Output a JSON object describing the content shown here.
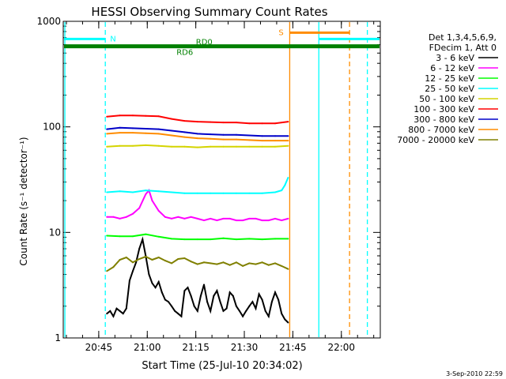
{
  "chart_data": {
    "type": "line",
    "title": "HESSI Observing Summary Count Rates",
    "xlabel": "Start Time (25-Jul-10 20:34:02)",
    "ylabel": "Count Rate (s⁻¹ detector⁻¹)",
    "x_unit": "minutes since 20:34:02",
    "xlim": [
      0,
      98
    ],
    "ylim": [
      1,
      1000
    ],
    "yscale": "log",
    "x_ticks": [
      {
        "value": 10.97,
        "label": "20:45"
      },
      {
        "value": 25.97,
        "label": "21:00"
      },
      {
        "value": 40.97,
        "label": "21:15"
      },
      {
        "value": 55.97,
        "label": "21:30"
      },
      {
        "value": 70.97,
        "label": "21:45"
      },
      {
        "value": 85.97,
        "label": "22:00"
      }
    ],
    "y_ticks": [
      {
        "value": 1,
        "label": "1"
      },
      {
        "value": 10,
        "label": "10"
      },
      {
        "value": 100,
        "label": "100"
      },
      {
        "value": 1000,
        "label": "1000"
      }
    ],
    "legend": {
      "placement": "right",
      "header": [
        "Det 1,3,4,5,6,9,",
        "FDecim 1, Att 0"
      ],
      "entries": [
        {
          "label": "3 - 6 keV",
          "color": "#000000"
        },
        {
          "label": "6 - 12 keV",
          "color": "#ff00ff"
        },
        {
          "label": "12 - 25 keV",
          "color": "#00ff00"
        },
        {
          "label": "25 - 50 keV",
          "color": "#00ffff"
        },
        {
          "label": "50 - 100 keV",
          "color": "#d4d400"
        },
        {
          "label": "100 - 300 keV",
          "color": "#ff0000"
        },
        {
          "label": "300 - 800 keV",
          "color": "#0000c8"
        },
        {
          "label": "800 - 7000 keV",
          "color": "#ff8c00"
        },
        {
          "label": "7000 - 20000 keV",
          "color": "#808000"
        }
      ]
    },
    "series": [
      {
        "name": "3 - 6 keV",
        "color": "#000000",
        "x": [
          13.5,
          14.5,
          15.5,
          16.5,
          17.5,
          18.5,
          19.5,
          20.5,
          21.5,
          22.5,
          23.5,
          24.5,
          25.5,
          26.5,
          27.5,
          28.5,
          29.5,
          30.5,
          31.5,
          32.5,
          33.5,
          34.5,
          35.5,
          36.5,
          37.5,
          38.5,
          39.5,
          40.5,
          41.5,
          42.5,
          43.5,
          44.5,
          45.5,
          46.5,
          47.5,
          48.5,
          49.5,
          50.5,
          51.5,
          52.5,
          53.5,
          54.5,
          55.5,
          56.5,
          57.5,
          58.5,
          59.5,
          60.5,
          61.5,
          62.5,
          63.5,
          64.5,
          65.5,
          66.5,
          67.5,
          68.5,
          69.5
        ],
        "y": [
          1.7,
          1.8,
          1.6,
          1.9,
          1.8,
          1.7,
          1.9,
          3.5,
          4.3,
          5.2,
          7.0,
          8.6,
          6.0,
          4.0,
          3.3,
          3.0,
          3.4,
          2.7,
          2.3,
          2.2,
          2.0,
          1.8,
          1.7,
          1.6,
          2.8,
          3.0,
          2.5,
          2.0,
          1.8,
          2.5,
          3.2,
          2.2,
          1.8,
          2.5,
          2.8,
          2.2,
          1.8,
          1.9,
          2.7,
          2.5,
          2.0,
          1.8,
          1.6,
          1.8,
          2.0,
          2.2,
          1.9,
          2.6,
          2.3,
          1.8,
          1.6,
          2.2,
          2.7,
          2.3,
          1.7,
          1.5,
          1.4
        ]
      },
      {
        "name": "6 - 12 keV",
        "color": "#ff00ff",
        "x": [
          13.5,
          15.5,
          17.5,
          19.5,
          21.5,
          23.5,
          25.5,
          26.5,
          27.5,
          29.5,
          31.5,
          33.5,
          35.5,
          37.5,
          39.5,
          41.5,
          43.5,
          45.5,
          47.5,
          49.5,
          51.5,
          53.5,
          55.5,
          57.5,
          59.5,
          61.5,
          63.5,
          65.5,
          67.5,
          69.5
        ],
        "y": [
          14,
          14,
          13.5,
          14,
          15,
          17,
          23,
          25,
          20,
          16,
          14,
          13.5,
          14,
          13.5,
          14,
          13.5,
          13,
          13.5,
          13,
          13.5,
          13.5,
          13,
          13,
          13.5,
          13.5,
          13,
          13,
          13.5,
          13,
          13.5
        ]
      },
      {
        "name": "12 - 25 keV",
        "color": "#00ff00",
        "x": [
          13.5,
          17.5,
          21.5,
          25.5,
          29.5,
          33.5,
          37.5,
          41.5,
          45.5,
          49.5,
          53.5,
          57.5,
          61.5,
          65.5,
          69.5
        ],
        "y": [
          9.3,
          9.2,
          9.2,
          9.6,
          9.1,
          8.7,
          8.6,
          8.6,
          8.6,
          8.8,
          8.6,
          8.7,
          8.6,
          8.7,
          8.7
        ]
      },
      {
        "name": "25 - 50 keV",
        "color": "#00ffff",
        "x": [
          13.5,
          17.5,
          21.5,
          25.5,
          29.5,
          33.5,
          37.5,
          41.5,
          45.5,
          49.5,
          53.5,
          57.5,
          61.5,
          65.5,
          67.5,
          68.5,
          69.5
        ],
        "y": [
          24,
          24.5,
          24,
          25,
          24.5,
          24,
          23.5,
          23.5,
          23.5,
          23.5,
          23.5,
          23.5,
          23.5,
          24,
          25,
          28,
          33
        ]
      },
      {
        "name": "50 - 100 keV",
        "color": "#d4d400",
        "x": [
          13.5,
          17.5,
          21.5,
          25.5,
          29.5,
          33.5,
          37.5,
          41.5,
          45.5,
          49.5,
          53.5,
          57.5,
          61.5,
          65.5,
          69.5
        ],
        "y": [
          65,
          66,
          66,
          67,
          66,
          65,
          65,
          64,
          65,
          65,
          65,
          65,
          65,
          65,
          66
        ]
      },
      {
        "name": "100 - 300 keV",
        "color": "#ff0000",
        "x": [
          13.5,
          17.5,
          21.5,
          25.5,
          29.5,
          33.5,
          37.5,
          41.5,
          45.5,
          49.5,
          53.5,
          57.5,
          61.5,
          65.5,
          69.5
        ],
        "y": [
          125,
          128,
          128,
          127,
          126,
          119,
          114,
          112,
          111,
          110,
          110,
          108,
          108,
          108,
          112
        ]
      },
      {
        "name": "300 - 800 keV",
        "color": "#0000c8",
        "x": [
          13.5,
          17.5,
          21.5,
          25.5,
          29.5,
          33.5,
          37.5,
          41.5,
          45.5,
          49.5,
          53.5,
          57.5,
          61.5,
          65.5,
          69.5
        ],
        "y": [
          95,
          98,
          97,
          96,
          95,
          92,
          89,
          86,
          85,
          84,
          84,
          83,
          82,
          82,
          82
        ]
      },
      {
        "name": "800 - 7000 keV",
        "color": "#ff8c00",
        "x": [
          13.5,
          17.5,
          21.5,
          25.5,
          29.5,
          33.5,
          37.5,
          41.5,
          45.5,
          49.5,
          53.5,
          57.5,
          61.5,
          65.5,
          69.5
        ],
        "y": [
          86,
          88,
          88,
          87,
          86,
          83,
          80,
          78,
          77,
          76,
          76,
          75,
          74,
          74,
          74
        ]
      },
      {
        "name": "7000 - 20000 keV",
        "color": "#808000",
        "x": [
          13.5,
          15.5,
          17.5,
          19.5,
          21.5,
          23.5,
          25.5,
          27.5,
          29.5,
          31.5,
          33.5,
          35.5,
          37.5,
          39.5,
          41.5,
          43.5,
          45.5,
          47.5,
          49.5,
          51.5,
          53.5,
          55.5,
          57.5,
          59.5,
          61.5,
          63.5,
          65.5,
          67.5,
          69.5
        ],
        "y": [
          4.3,
          4.7,
          5.5,
          5.8,
          5.2,
          5.6,
          5.9,
          5.5,
          5.8,
          5.4,
          5.1,
          5.6,
          5.7,
          5.3,
          5.0,
          5.2,
          5.1,
          5.0,
          5.2,
          4.9,
          5.2,
          4.8,
          5.1,
          5.0,
          5.2,
          4.9,
          5.1,
          4.8,
          4.5
        ]
      }
    ],
    "status_bars": [
      {
        "label": "N",
        "color": "#00ffff",
        "x": [
          0,
          13.0
        ],
        "y": 680
      },
      {
        "label": "",
        "color": "#00ffff",
        "x": [
          79.0,
          98
        ],
        "y": 680
      },
      {
        "label": "S",
        "color": "#ff8c00",
        "x": [
          70.0,
          88.5
        ],
        "y": 780
      },
      {
        "label": "RD0",
        "color": "#008000",
        "x": [
          0,
          98
        ],
        "y": 590
      },
      {
        "label": "RD6",
        "color": "#008000",
        "x": [
          0,
          98
        ],
        "y": 570
      }
    ],
    "vertical_markers": [
      {
        "x": 0.5,
        "color": "#00ffff",
        "style": "solid"
      },
      {
        "x": 13.0,
        "color": "#00ffff",
        "style": "dashed"
      },
      {
        "x": 70.0,
        "color": "#ff8c00",
        "style": "solid"
      },
      {
        "x": 79.0,
        "color": "#00ffff",
        "style": "solid"
      },
      {
        "x": 88.5,
        "color": "#ff8c00",
        "style": "dashed"
      },
      {
        "x": 94.0,
        "color": "#00ffff",
        "style": "dashed"
      }
    ],
    "footer": "3-Sep-2010 22:59"
  }
}
